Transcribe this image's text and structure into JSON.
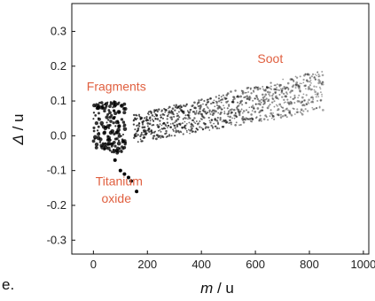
{
  "chart_data": {
    "type": "scatter",
    "xlabel": {
      "italic": "m",
      "rest": " / u"
    },
    "ylabel": {
      "italic": "Δ",
      "rest": " / u"
    },
    "xlim": [
      -80,
      1020
    ],
    "ylim": [
      -0.34,
      0.38
    ],
    "xticks": [
      "0",
      "200",
      "400",
      "600",
      "800",
      "1000"
    ],
    "yticks": [
      "0.3",
      "0.2",
      "0.1",
      "0.0",
      "-0.1",
      "-0.2",
      "-0.3"
    ],
    "annotations": [
      {
        "text": "Soot",
        "x": 655,
        "y": 0.21
      },
      {
        "text": "Fragments",
        "x": 85,
        "y": 0.13
      },
      {
        "text": "Titanium",
        "x": 95,
        "y": -0.143
      },
      {
        "text": "oxide",
        "x": 85,
        "y": -0.193
      }
    ],
    "series": [
      {
        "group": "Soot",
        "trend": {
          "m": [
            150,
            850
          ],
          "delta_center": [
            0.02,
            0.13
          ]
        },
        "color": "#000000"
      },
      {
        "group": "Fragments",
        "x_range": [
          0,
          120
        ],
        "y_range": [
          -0.05,
          0.1
        ],
        "color": "#000000"
      },
      {
        "group": "Titanium oxide",
        "points": [
          [
            80,
            -0.07
          ],
          [
            100,
            -0.1
          ],
          [
            115,
            -0.11
          ],
          [
            130,
            -0.12
          ],
          [
            140,
            -0.13
          ],
          [
            160,
            -0.16
          ]
        ],
        "color": "#000000"
      }
    ],
    "grid": false,
    "legend": "none"
  },
  "stray_text": "e."
}
